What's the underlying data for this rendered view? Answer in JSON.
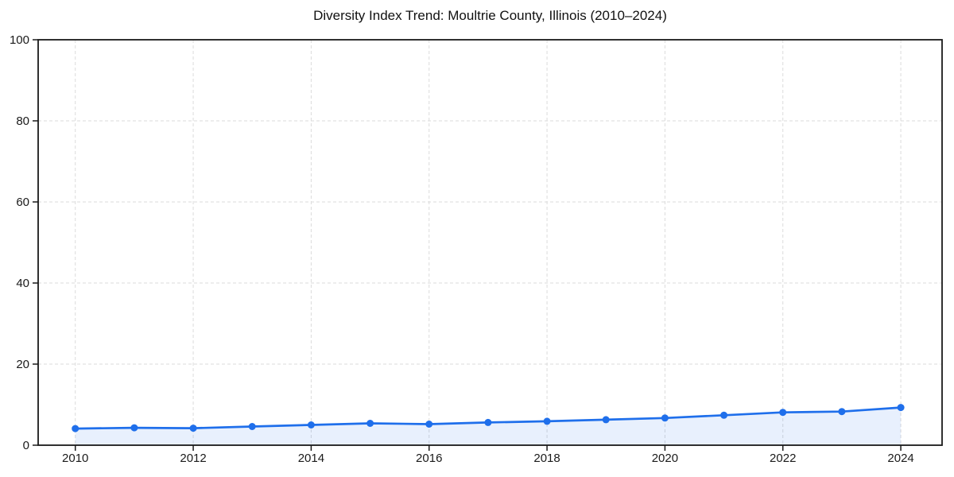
{
  "page": {
    "background": "#ffffff"
  },
  "chart_data": {
    "type": "line",
    "title": "Diversity Index Trend: Moultrie County, Illinois (2010–2024)",
    "x": [
      2010,
      2011,
      2012,
      2013,
      2014,
      2015,
      2016,
      2017,
      2018,
      2019,
      2020,
      2021,
      2022,
      2023,
      2024
    ],
    "values": [
      4.1,
      4.3,
      4.2,
      4.6,
      5.0,
      5.4,
      5.2,
      5.6,
      5.9,
      6.3,
      6.7,
      7.4,
      8.1,
      8.3,
      9.3
    ],
    "xlabel": "",
    "ylabel": "",
    "xlim": [
      2009.37,
      2024.7
    ],
    "ylim": [
      0,
      100
    ],
    "xticks": [
      2010,
      2012,
      2014,
      2016,
      2018,
      2020,
      2022,
      2024
    ],
    "yticks": [
      0,
      20,
      40,
      60,
      80,
      100
    ],
    "grid": true,
    "grid_style": "dashed",
    "legend_position": "none",
    "marker": "circle",
    "area_under_line": true,
    "colors": {
      "line": "#1f6feb",
      "marker": "#1f6feb",
      "area_fill": "rgba(31,111,235,0.1)",
      "grid": "#dbdbdb",
      "spine": "#1a1a1a",
      "tick_label": "#1a1a1a",
      "title": "#111111"
    }
  }
}
